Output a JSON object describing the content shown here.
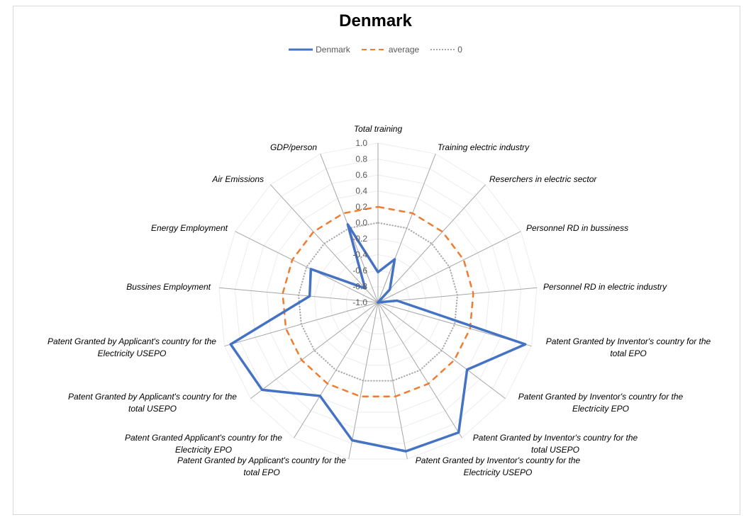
{
  "chart_data": {
    "type": "radar",
    "title": "Denmark",
    "legend_position": "top",
    "axis_range": [
      -1.0,
      1.0
    ],
    "ticks": [
      "1.0",
      "0.8",
      "0.6",
      "0.4",
      "0.2",
      "0.0",
      "-0.2",
      "-0.4",
      "-0.6",
      "-0.8",
      "-1.0"
    ],
    "categories": [
      "Total training",
      "Training electric industry",
      "Reserchers in electric sector",
      "Personnel RD in bussiness",
      "Personnel RD in electric industry",
      "Patent Granted by Inventor's country for the total EPO",
      "Patent Granted by Inventor's country for the Electricity EPO",
      "Patent Granted by Inventor's country for the total USEPO",
      "Patent Granted by Inventor's country for the Electricity USEPO",
      "Patent Granted by Applicant's country for the total EPO",
      "Patent Granted Applicant's country for the Electricity EPO",
      "Patent Granted by Applicant's country for the total USEPO",
      "Patent Granted by Applicant's country for the Electricity USEPO",
      "Bussines Employment",
      "Energy Employment",
      "Air Emissions",
      "GDP/person"
    ],
    "series": [
      {
        "name": "Denmark",
        "color": "#4472c4",
        "style": "solid",
        "values": [
          -0.62,
          -0.42,
          -0.78,
          -1.0,
          -0.76,
          0.92,
          0.4,
          0.92,
          0.9,
          0.76,
          0.38,
          0.82,
          0.92,
          -0.14,
          -0.06,
          -0.76,
          0.05
        ]
      },
      {
        "name": "average",
        "color": "#ed7d31",
        "style": "dashed",
        "values": [
          0.2,
          0.2,
          0.2,
          0.2,
          0.2,
          0.2,
          0.2,
          0.2,
          0.2,
          0.2,
          0.2,
          0.2,
          0.2,
          0.2,
          0.2,
          0.2,
          0.2
        ]
      },
      {
        "name": "0",
        "color": "#a5a5a5",
        "style": "dotted",
        "values": [
          0,
          0,
          0,
          0,
          0,
          0,
          0,
          0,
          0,
          0,
          0,
          0,
          0,
          0,
          0,
          0,
          0
        ]
      }
    ]
  }
}
